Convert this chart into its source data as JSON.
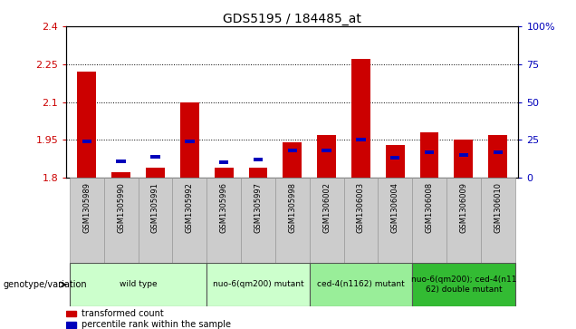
{
  "title": "GDS5195 / 184485_at",
  "samples": [
    "GSM1305989",
    "GSM1305990",
    "GSM1305991",
    "GSM1305992",
    "GSM1305996",
    "GSM1305997",
    "GSM1305998",
    "GSM1306002",
    "GSM1306003",
    "GSM1306004",
    "GSM1306008",
    "GSM1306009",
    "GSM1306010"
  ],
  "red_values": [
    2.22,
    1.82,
    1.84,
    2.1,
    1.84,
    1.84,
    1.94,
    1.97,
    2.27,
    1.93,
    1.98,
    1.95,
    1.97
  ],
  "blue_values": [
    24,
    11,
    14,
    24,
    10,
    12,
    18,
    18,
    25,
    13,
    17,
    15,
    17
  ],
  "ymin": 1.8,
  "ymax": 2.4,
  "yticks": [
    1.8,
    1.95,
    2.1,
    2.25,
    2.4
  ],
  "ytick_labels": [
    "1.8",
    "1.95",
    "2.1",
    "2.25",
    "2.4"
  ],
  "right_yticks": [
    0,
    25,
    50,
    75,
    100
  ],
  "right_ytick_labels": [
    "0",
    "25",
    "50",
    "75",
    "100%"
  ],
  "grid_lines": [
    1.95,
    2.1,
    2.25
  ],
  "groups": [
    {
      "label": "wild type",
      "start": 0,
      "end": 3,
      "color": "#ccffcc"
    },
    {
      "label": "nuo-6(qm200) mutant",
      "start": 4,
      "end": 6,
      "color": "#ccffcc"
    },
    {
      "label": "ced-4(n1162) mutant",
      "start": 7,
      "end": 9,
      "color": "#99ee99"
    },
    {
      "label": "nuo-6(qm200); ced-4(n11\n62) double mutant",
      "start": 10,
      "end": 12,
      "color": "#33bb33"
    }
  ],
  "bar_color": "#cc0000",
  "blue_color": "#0000bb",
  "plot_bg": "#ffffff",
  "sample_row_bg": "#cccccc",
  "left_axis_color": "#cc0000",
  "right_axis_color": "#0000bb",
  "legend_red": "transformed count",
  "legend_blue": "percentile rank within the sample",
  "genotype_label": "genotype/variation"
}
